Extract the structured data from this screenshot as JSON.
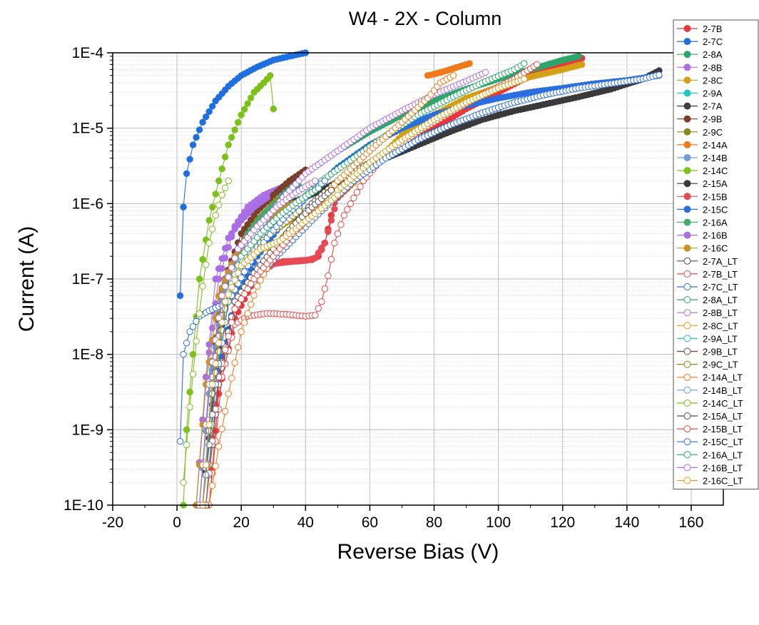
{
  "chart_data": {
    "type": "scatter",
    "title": "W4 - 2X - Column",
    "xlabel": "Reverse Bias (V)",
    "ylabel": "Current (A)",
    "xlim": [
      -20,
      170
    ],
    "ylim": [
      1e-10,
      0.0001
    ],
    "yscale": "log",
    "grid": true,
    "legend_position": "right",
    "x_ticks": [
      -20,
      0,
      20,
      40,
      60,
      80,
      100,
      120,
      140,
      160
    ],
    "x_tick_labels": [
      "-20",
      "0",
      "20",
      "40",
      "60",
      "80",
      "100",
      "120",
      "140",
      "160"
    ],
    "y_ticks": [
      1e-10,
      1e-09,
      1e-08,
      1e-07,
      1e-06,
      1e-05,
      0.0001
    ],
    "y_tick_labels": [
      "1E-10",
      "1E-9",
      "1E-8",
      "1E-7",
      "1E-6",
      "1E-5",
      "1E-4"
    ],
    "series": [
      {
        "name": "2-7B",
        "color": "#e8383d",
        "filled": true,
        "x": [
          10,
          13,
          18,
          23,
          28,
          33,
          38,
          42,
          44,
          46,
          48,
          50,
          55,
          60,
          70,
          80,
          90,
          100,
          110,
          126
        ],
        "y": [
          1e-10,
          3e-09,
          3e-08,
          8e-08,
          1.5e-07,
          1.7e-07,
          1.75e-07,
          1.8e-07,
          2e-07,
          3e-07,
          7e-07,
          1.5e-06,
          2.2e-06,
          3e-06,
          6e-06,
          1e-05,
          1.8e-05,
          3e-05,
          5e-05,
          8.5e-05
        ]
      },
      {
        "name": "2-7C",
        "color": "#1f6fe0",
        "filled": true,
        "x": [
          1,
          2,
          3,
          5,
          8,
          12,
          16,
          20,
          25,
          30,
          35,
          40
        ],
        "y": [
          6e-08,
          9e-07,
          2.5e-06,
          6e-06,
          1.2e-05,
          2.3e-05,
          3.6e-05,
          5e-05,
          6.5e-05,
          8e-05,
          9e-05,
          0.0001
        ]
      },
      {
        "name": "2-8A",
        "color": "#2ca66a",
        "filled": true,
        "x": [
          7,
          10,
          15,
          20,
          25,
          30,
          40,
          50,
          60,
          70,
          80,
          90,
          100,
          110,
          120,
          125
        ],
        "y": [
          1e-10,
          3e-09,
          6e-08,
          2e-07,
          4e-07,
          1e-06,
          2.5e-06,
          5e-06,
          9e-06,
          1.5e-05,
          2.3e-05,
          3.3e-05,
          4.5e-05,
          6e-05,
          8e-05,
          9e-05
        ]
      },
      {
        "name": "2-8B",
        "color": "#b06ee6",
        "filled": true,
        "x": [
          6,
          9,
          13,
          18,
          22,
          27,
          32
        ],
        "y": [
          1e-10,
          5e-09,
          1e-07,
          5e-07,
          9e-07,
          1.3e-06,
          1.6e-06
        ]
      },
      {
        "name": "2-8C",
        "color": "#d4a017",
        "filled": true,
        "x": [
          6,
          9,
          13,
          18,
          25,
          35,
          50,
          60,
          70,
          80,
          90,
          100,
          110,
          120,
          126
        ],
        "y": [
          1e-10,
          4e-09,
          6e-08,
          1.5e-07,
          3e-07,
          6e-07,
          1.2e-06,
          3e-06,
          8e-06,
          1.5e-05,
          2.5e-05,
          3.5e-05,
          4.8e-05,
          6e-05,
          7e-05
        ]
      },
      {
        "name": "2-9A",
        "color": "#1fc5c0",
        "filled": true,
        "x": [
          7,
          10,
          14,
          19,
          25,
          32,
          38
        ],
        "y": [
          1e-10,
          3e-09,
          6e-08,
          2.5e-07,
          6e-07,
          1.2e-06,
          1.6e-06
        ]
      },
      {
        "name": "2-7A",
        "color": "#404040",
        "filled": true,
        "x": [
          8,
          11,
          15,
          20,
          25,
          30,
          36
        ],
        "y": [
          1e-10,
          3e-09,
          5e-08,
          2e-07,
          5e-07,
          1e-06,
          1.5e-06
        ]
      },
      {
        "name": "2-9B",
        "color": "#7b3f2a",
        "filled": true,
        "x": [
          7,
          10,
          15,
          20,
          25,
          30,
          35,
          40
        ],
        "y": [
          1e-10,
          4e-09,
          1e-07,
          4e-07,
          8e-07,
          1.3e-06,
          2e-06,
          2.8e-06
        ]
      },
      {
        "name": "2-9C",
        "color": "#8a8a1a",
        "filled": true,
        "x": [
          7,
          10,
          14,
          19,
          25,
          31,
          37
        ],
        "y": [
          1e-10,
          4e-09,
          7e-08,
          2.5e-07,
          6e-07,
          1.1e-06,
          1.5e-06
        ]
      },
      {
        "name": "2-14A",
        "color": "#f07a1a",
        "filled": true,
        "x": [
          78,
          80,
          82,
          84,
          86,
          88,
          90,
          91
        ],
        "y": [
          5e-05,
          5.2e-05,
          5.5e-05,
          5.8e-05,
          6.2e-05,
          6.6e-05,
          7e-05,
          7.2e-05
        ]
      },
      {
        "name": "2-14B",
        "color": "#6a9fd6",
        "filled": true,
        "x": [
          7,
          10,
          14,
          19,
          25,
          31,
          37
        ],
        "y": [
          1e-10,
          3e-09,
          5e-08,
          2e-07,
          5e-07,
          1e-06,
          1.4e-06
        ]
      },
      {
        "name": "2-14C",
        "color": "#7cc01a",
        "filled": true,
        "x": [
          2,
          3,
          5,
          7,
          10,
          13,
          16,
          20,
          24,
          27,
          29,
          30
        ],
        "y": [
          1e-10,
          1e-09,
          1e-08,
          1e-07,
          6e-07,
          2e-06,
          6e-06,
          1.5e-05,
          3e-05,
          4e-05,
          5e-05,
          1.8e-05
        ]
      },
      {
        "name": "2-15A",
        "color": "#3a3a3a",
        "filled": true,
        "x": [
          8,
          12,
          16,
          22,
          28,
          35,
          45,
          55,
          65,
          75,
          85,
          95,
          105,
          115,
          125,
          135,
          145,
          150
        ],
        "y": [
          1e-10,
          6e-09,
          8e-08,
          3e-07,
          6e-07,
          1e-06,
          1.5e-06,
          2.5e-06,
          4e-06,
          6e-06,
          9e-06,
          1.3e-05,
          1.7e-05,
          2.1e-05,
          2.6e-05,
          3.3e-05,
          4.5e-05,
          5.8e-05
        ]
      },
      {
        "name": "2-15B",
        "color": "#e84a55",
        "filled": true,
        "x": [
          9,
          13,
          18,
          24,
          30,
          36,
          40,
          43,
          46,
          48,
          50,
          55
        ],
        "y": [
          1e-10,
          6e-09,
          4e-08,
          1e-07,
          1.6e-07,
          1.7e-07,
          1.75e-07,
          1.9e-07,
          3e-07,
          6e-07,
          1.2e-06,
          2e-06
        ]
      },
      {
        "name": "2-15C",
        "color": "#2a6ee0",
        "filled": true,
        "x": [
          8,
          12,
          18,
          25,
          32,
          40,
          50,
          60,
          70,
          80,
          90,
          100,
          110,
          120,
          130,
          140,
          150
        ],
        "y": [
          1e-10,
          4e-09,
          5e-08,
          2e-07,
          5e-07,
          1.2e-06,
          3e-06,
          6e-06,
          1e-05,
          1.5e-05,
          2e-05,
          2.5e-05,
          3e-05,
          3.4e-05,
          3.9e-05,
          4.3e-05,
          5e-05
        ]
      },
      {
        "name": "2-16A",
        "color": "#3fae6a",
        "filled": true,
        "x": [
          8,
          11,
          16,
          22,
          28,
          34,
          38
        ],
        "y": [
          1e-10,
          5e-09,
          1e-07,
          4e-07,
          8e-07,
          1.3e-06,
          1.7e-06
        ]
      },
      {
        "name": "2-16B",
        "color": "#a86ee6",
        "filled": true,
        "x": [
          6,
          9,
          12,
          16,
          20,
          24,
          28
        ],
        "y": [
          1e-10,
          5e-09,
          1e-07,
          3.5e-07,
          6e-07,
          9e-07,
          1.2e-06
        ]
      },
      {
        "name": "2-16C",
        "color": "#c8961e",
        "filled": true,
        "x": [
          6,
          9,
          13,
          18,
          24,
          30,
          36
        ],
        "y": [
          1e-10,
          4e-09,
          6e-08,
          2e-07,
          4e-07,
          7e-07,
          1e-06
        ]
      },
      {
        "name": "2-7A_LT",
        "color": "#4a4a4a",
        "filled": false,
        "x": [
          9,
          13,
          18,
          24,
          30,
          36,
          42,
          50,
          60,
          70,
          80,
          90,
          100
        ],
        "y": [
          1e-10,
          4e-09,
          5e-08,
          1.2e-07,
          2.5e-07,
          5e-07,
          1e-06,
          2e-06,
          3.5e-06,
          6e-06,
          9e-06,
          1.3e-05,
          1.8e-05
        ]
      },
      {
        "name": "2-7B_LT",
        "color": "#e84a4a",
        "filled": false,
        "x": [
          10,
          14,
          18,
          22,
          28,
          34,
          40,
          43,
          45,
          47,
          49,
          52,
          58,
          65,
          75,
          85,
          95,
          105,
          112
        ],
        "y": [
          1e-10,
          5e-09,
          2.5e-08,
          3.2e-08,
          3.5e-08,
          3.4e-08,
          3.2e-08,
          3.3e-08,
          5e-08,
          1.1e-07,
          3e-07,
          7e-07,
          2e-06,
          4.5e-06,
          9e-06,
          1.6e-05,
          2.8e-05,
          4.5e-05,
          7e-05
        ]
      },
      {
        "name": "2-7C_LT",
        "color": "#2a6ee0",
        "filled": false,
        "x": [
          1,
          2,
          4,
          7,
          10,
          14,
          19,
          25,
          31,
          38,
          45,
          55,
          65,
          75,
          85,
          95,
          105,
          115,
          125,
          135,
          145,
          150
        ],
        "y": [
          7e-10,
          1e-08,
          2e-08,
          3.2e-08,
          3.8e-08,
          4.5e-08,
          6e-08,
          1e-07,
          2e-07,
          4e-07,
          8e-07,
          2e-06,
          4e-06,
          7e-06,
          1.1e-05,
          1.6e-05,
          2.2e-05,
          2.8e-05,
          3.4e-05,
          3.9e-05,
          4.5e-05,
          5.1e-05
        ]
      },
      {
        "name": "2-8A_LT",
        "color": "#2ca66a",
        "filled": false,
        "x": [
          9,
          12,
          16,
          22,
          28,
          35,
          45,
          55,
          65,
          75,
          85,
          95,
          105,
          108
        ],
        "y": [
          1e-10,
          4e-09,
          5e-08,
          2e-07,
          4e-07,
          8e-07,
          2e-06,
          4e-06,
          8e-06,
          1.5e-05,
          2.5e-05,
          4e-05,
          6e-05,
          7.2e-05
        ]
      },
      {
        "name": "2-8B_LT",
        "color": "#b06ee6",
        "filled": false,
        "x": [
          8,
          11,
          15,
          20,
          26,
          33,
          40,
          50,
          60,
          70,
          80,
          90,
          96
        ],
        "y": [
          1e-10,
          5e-09,
          6e-08,
          2e-07,
          5e-07,
          1.2e-06,
          2.5e-06,
          5e-06,
          1e-05,
          1.7e-05,
          2.8e-05,
          4.2e-05,
          5.5e-05
        ]
      },
      {
        "name": "2-8C_LT",
        "color": "#d4a017",
        "filled": false,
        "x": [
          8,
          11,
          15,
          20,
          26,
          33,
          40,
          50,
          60,
          70,
          80,
          90,
          100,
          108
        ],
        "y": [
          1e-10,
          4e-09,
          5e-08,
          1.5e-07,
          2.5e-07,
          3e-07,
          6e-07,
          1.5e-06,
          3.5e-06,
          7e-06,
          1.3e-05,
          2.2e-05,
          3.4e-05,
          4.5e-05
        ]
      },
      {
        "name": "2-9A_LT",
        "color": "#1fc5c0",
        "filled": false,
        "x": [
          8,
          11,
          15,
          20,
          26,
          32,
          38
        ],
        "y": [
          1e-10,
          4e-09,
          5e-08,
          2e-07,
          4e-07,
          6e-07,
          9e-07
        ]
      },
      {
        "name": "2-9B_LT",
        "color": "#7b3f2a",
        "filled": false,
        "x": [
          8,
          11,
          15,
          20,
          26,
          32,
          38
        ],
        "y": [
          1e-10,
          3e-09,
          4e-08,
          1.5e-07,
          3.5e-07,
          6e-07,
          9e-07
        ]
      },
      {
        "name": "2-9C_LT",
        "color": "#8a8a1a",
        "filled": false,
        "x": [
          8,
          11,
          15,
          20,
          26,
          32,
          38
        ],
        "y": [
          1e-10,
          3e-09,
          4e-08,
          1.5e-07,
          3e-07,
          5e-07,
          8e-07
        ]
      },
      {
        "name": "2-14A_LT",
        "color": "#f07a1a",
        "filled": false,
        "x": [
          10,
          13,
          16,
          20,
          25,
          30,
          36,
          42,
          50,
          60,
          70,
          78,
          82,
          86
        ],
        "y": [
          1e-10,
          6e-10,
          3e-09,
          2e-08,
          8e-08,
          2e-07,
          4e-07,
          8e-07,
          2e-06,
          5e-06,
          1.2e-05,
          2.5e-05,
          4e-05,
          5e-05
        ]
      },
      {
        "name": "2-14B_LT",
        "color": "#6a9fd6",
        "filled": false,
        "x": [
          8,
          11,
          15,
          20,
          26,
          32,
          38
        ],
        "y": [
          1e-10,
          4e-09,
          5e-08,
          1.8e-07,
          4e-07,
          7e-07,
          1e-06
        ]
      },
      {
        "name": "2-14C_LT",
        "color": "#7cc01a",
        "filled": false,
        "x": [
          2,
          4,
          6,
          8,
          10,
          12,
          14,
          16
        ],
        "y": [
          2e-10,
          2e-09,
          1.5e-08,
          8e-08,
          3e-07,
          7e-07,
          1.3e-06,
          2e-06
        ]
      },
      {
        "name": "2-15A_LT",
        "color": "#4a4a4a",
        "filled": false,
        "x": [
          9,
          13,
          18,
          24,
          30,
          36,
          42,
          48
        ],
        "y": [
          1e-10,
          5e-09,
          5e-08,
          1.2e-07,
          2.5e-07,
          5e-07,
          9e-07,
          1.5e-06
        ]
      },
      {
        "name": "2-15B_LT",
        "color": "#e84a4a",
        "filled": false,
        "x": [
          9,
          13,
          18,
          24,
          30,
          36,
          42,
          48
        ],
        "y": [
          1e-10,
          5e-09,
          4e-08,
          1e-07,
          2e-07,
          4e-07,
          7e-07,
          1.1e-06
        ]
      },
      {
        "name": "2-15C_LT",
        "color": "#2a6ee0",
        "filled": false,
        "x": [
          8,
          12,
          16,
          22,
          28,
          34,
          40,
          46
        ],
        "y": [
          1e-10,
          4e-09,
          5e-08,
          1.5e-07,
          3.5e-07,
          7e-07,
          1.2e-06,
          2e-06
        ]
      },
      {
        "name": "2-16A_LT",
        "color": "#2ca66a",
        "filled": false,
        "x": [
          8,
          11,
          15,
          20,
          26,
          32,
          38,
          44
        ],
        "y": [
          1e-10,
          4e-09,
          5e-08,
          2e-07,
          4e-07,
          7e-07,
          1.1e-06,
          1.6e-06
        ]
      },
      {
        "name": "2-16B_LT",
        "color": "#b06ee6",
        "filled": false,
        "x": [
          7,
          10,
          14,
          19,
          25,
          31,
          37,
          43
        ],
        "y": [
          1e-10,
          4e-09,
          6e-08,
          2.5e-07,
          5e-07,
          9e-07,
          1.4e-06,
          2e-06
        ]
      },
      {
        "name": "2-16C_LT",
        "color": "#d4a017",
        "filled": false,
        "x": [
          8,
          11,
          15,
          20,
          26,
          32,
          38,
          44,
          50
        ],
        "y": [
          1e-10,
          4e-09,
          5e-08,
          1.5e-07,
          2.5e-07,
          3.2e-07,
          5e-07,
          8e-07,
          1.3e-06
        ]
      }
    ]
  }
}
